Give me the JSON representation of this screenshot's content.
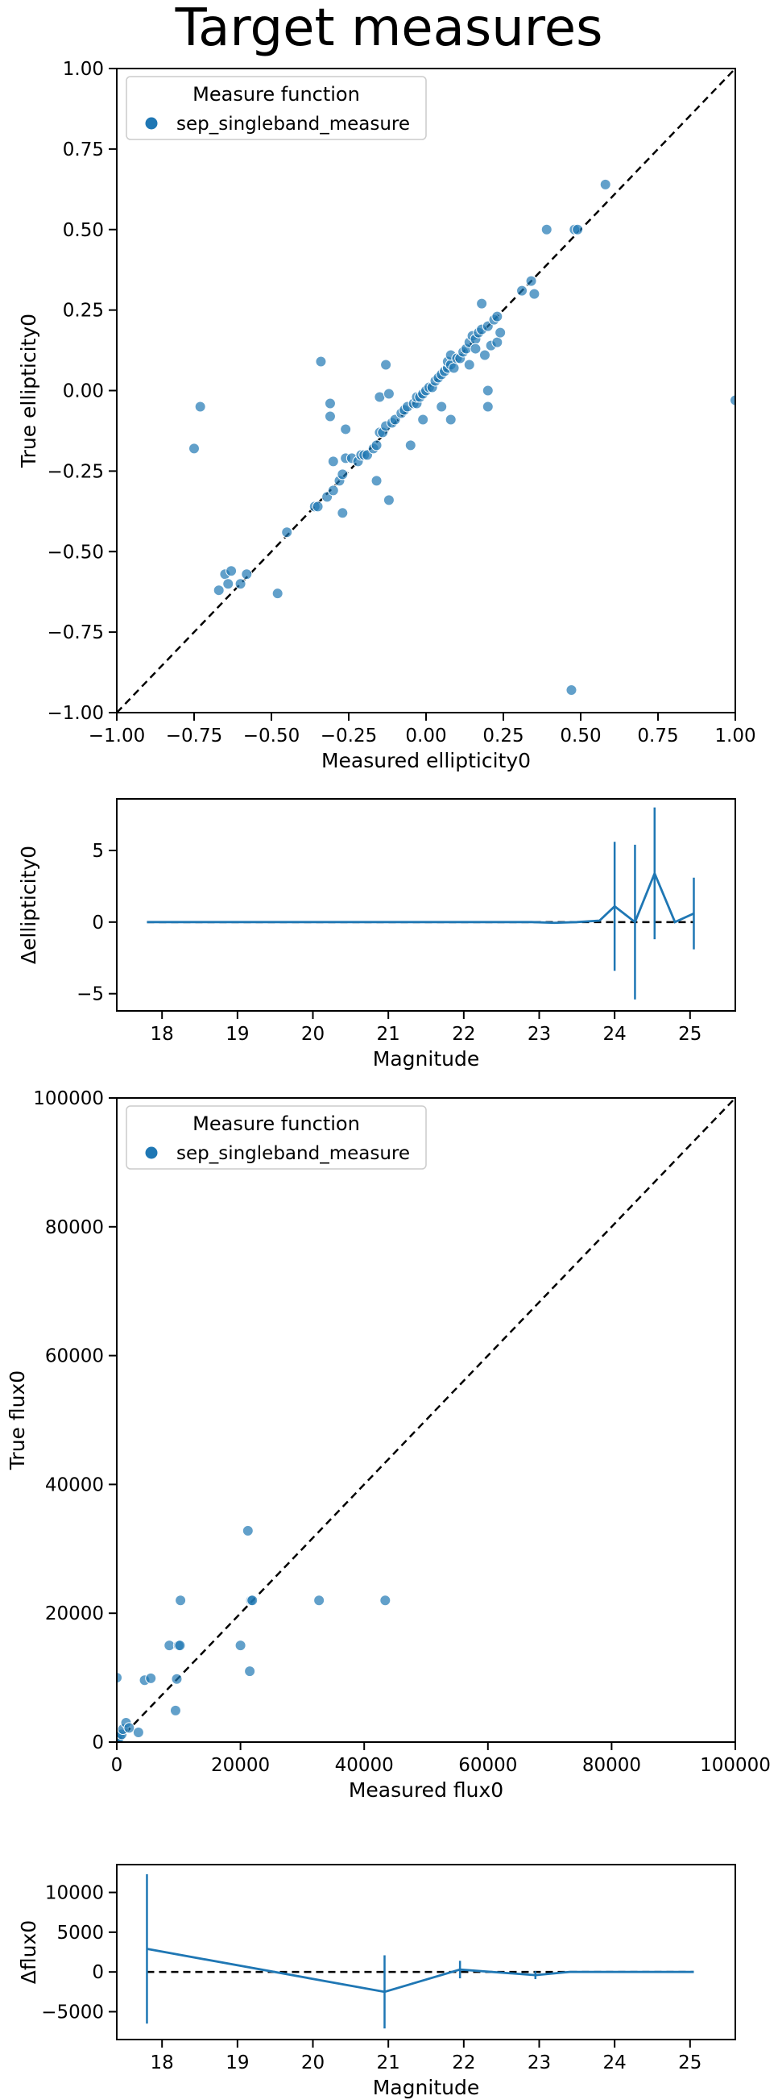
{
  "figure": {
    "title": "Target measures"
  },
  "chart_data": [
    {
      "type": "scatter",
      "xlabel": "Measured ellipticity0",
      "ylabel": "True ellipticity0",
      "xlim": [
        -1.0,
        1.0
      ],
      "ylim": [
        -1.0,
        1.0
      ],
      "xticks": [
        "−1.00",
        "−0.75",
        "−0.50",
        "−0.25",
        "0.00",
        "0.25",
        "0.50",
        "0.75",
        "1.00"
      ],
      "yticks": [
        "−1.00",
        "−0.75",
        "−0.50",
        "−0.25",
        "0.00",
        "0.25",
        "0.50",
        "0.75",
        "1.00"
      ],
      "legend": {
        "title": "Measure function",
        "entries": [
          "sep_singleband_measure"
        ],
        "placement": "top-left"
      },
      "reference_line": "y = x (dashed)",
      "grid": false,
      "series": [
        {
          "name": "sep_singleband_measure",
          "color": "#1f77b4",
          "points": [
            [
              -0.75,
              -0.18
            ],
            [
              -0.73,
              -0.05
            ],
            [
              -0.67,
              -0.62
            ],
            [
              -0.65,
              -0.57
            ],
            [
              -0.63,
              -0.56
            ],
            [
              -0.64,
              -0.6
            ],
            [
              -0.6,
              -0.6
            ],
            [
              -0.58,
              -0.57
            ],
            [
              -0.48,
              -0.63
            ],
            [
              -0.45,
              -0.44
            ],
            [
              -0.36,
              -0.36
            ],
            [
              -0.35,
              -0.36
            ],
            [
              -0.34,
              0.09
            ],
            [
              -0.32,
              -0.33
            ],
            [
              -0.31,
              -0.04
            ],
            [
              -0.31,
              -0.08
            ],
            [
              -0.3,
              -0.22
            ],
            [
              -0.3,
              -0.31
            ],
            [
              -0.28,
              -0.28
            ],
            [
              -0.27,
              -0.26
            ],
            [
              -0.27,
              -0.38
            ],
            [
              -0.26,
              -0.21
            ],
            [
              -0.26,
              -0.12
            ],
            [
              -0.24,
              -0.21
            ],
            [
              -0.22,
              -0.22
            ],
            [
              -0.21,
              -0.2
            ],
            [
              -0.2,
              -0.2
            ],
            [
              -0.19,
              -0.2
            ],
            [
              -0.17,
              -0.18
            ],
            [
              -0.16,
              -0.17
            ],
            [
              -0.16,
              -0.28
            ],
            [
              -0.15,
              -0.13
            ],
            [
              -0.15,
              -0.02
            ],
            [
              -0.14,
              -0.13
            ],
            [
              -0.13,
              0.08
            ],
            [
              -0.13,
              -0.11
            ],
            [
              -0.12,
              -0.01
            ],
            [
              -0.12,
              -0.34
            ],
            [
              -0.11,
              -0.1
            ],
            [
              -0.1,
              -0.09
            ],
            [
              -0.08,
              -0.07
            ],
            [
              -0.07,
              -0.06
            ],
            [
              -0.06,
              -0.05
            ],
            [
              -0.05,
              -0.17
            ],
            [
              -0.04,
              -0.04
            ],
            [
              -0.03,
              -0.04
            ],
            [
              -0.03,
              -0.02
            ],
            [
              -0.02,
              -0.02
            ],
            [
              -0.01,
              -0.01
            ],
            [
              -0.01,
              -0.09
            ],
            [
              0.0,
              0.0
            ],
            [
              0.01,
              0.01
            ],
            [
              0.02,
              0.01
            ],
            [
              0.03,
              0.03
            ],
            [
              0.04,
              0.04
            ],
            [
              0.05,
              0.05
            ],
            [
              0.05,
              -0.05
            ],
            [
              0.06,
              0.06
            ],
            [
              0.07,
              0.07
            ],
            [
              0.07,
              0.09
            ],
            [
              0.08,
              0.08
            ],
            [
              0.08,
              0.11
            ],
            [
              0.08,
              -0.09
            ],
            [
              0.09,
              0.07
            ],
            [
              0.1,
              0.1
            ],
            [
              0.11,
              0.1
            ],
            [
              0.12,
              0.12
            ],
            [
              0.13,
              0.13
            ],
            [
              0.14,
              0.15
            ],
            [
              0.14,
              0.08
            ],
            [
              0.15,
              0.17
            ],
            [
              0.16,
              0.16
            ],
            [
              0.16,
              0.13
            ],
            [
              0.17,
              0.18
            ],
            [
              0.18,
              0.19
            ],
            [
              0.18,
              0.27
            ],
            [
              0.19,
              0.11
            ],
            [
              0.2,
              0.2
            ],
            [
              0.2,
              0.0
            ],
            [
              0.2,
              -0.05
            ],
            [
              0.21,
              0.14
            ],
            [
              0.22,
              0.22
            ],
            [
              0.23,
              0.23
            ],
            [
              0.23,
              0.15
            ],
            [
              0.24,
              0.18
            ],
            [
              0.31,
              0.31
            ],
            [
              0.34,
              0.34
            ],
            [
              0.35,
              0.3
            ],
            [
              0.39,
              0.5
            ],
            [
              0.47,
              -0.93
            ],
            [
              0.48,
              0.5
            ],
            [
              0.49,
              0.5
            ],
            [
              0.58,
              0.64
            ],
            [
              1.0,
              -0.03
            ]
          ]
        }
      ]
    },
    {
      "type": "line",
      "xlabel": "Magnitude",
      "ylabel": "Δellipticity0",
      "xlim": [
        17.4,
        25.6
      ],
      "ylim": [
        -6.2,
        8.6
      ],
      "xticks": [
        "18",
        "19",
        "20",
        "21",
        "22",
        "23",
        "24",
        "25"
      ],
      "yticks": [
        "−5",
        "0",
        "5"
      ],
      "reference_line": "y = 0 (dashed)",
      "grid": false,
      "series": [
        {
          "color": "#1f77b4",
          "points": [
            [
              17.8,
              0.0,
              0.0
            ],
            [
              18.3,
              0.0,
              0.0
            ],
            [
              20.9,
              0.0,
              0.0
            ],
            [
              21.9,
              0.0,
              0.0
            ],
            [
              22.4,
              0.0,
              0.0
            ],
            [
              22.9,
              0.0,
              0.0
            ],
            [
              23.2,
              -0.05,
              0.0
            ],
            [
              23.5,
              0.0,
              0.0
            ],
            [
              23.8,
              0.1,
              0.0
            ],
            [
              24.0,
              1.1,
              4.5
            ],
            [
              24.27,
              0.0,
              5.4
            ],
            [
              24.53,
              3.4,
              4.6
            ],
            [
              24.8,
              0.0,
              0.0
            ],
            [
              25.05,
              0.6,
              2.5
            ]
          ]
        }
      ]
    },
    {
      "type": "scatter",
      "xlabel": "Measured flux0",
      "ylabel": "True flux0",
      "xlim": [
        0,
        100000
      ],
      "ylim": [
        0,
        100000
      ],
      "xticks": [
        "0",
        "20000",
        "40000",
        "60000",
        "80000",
        "100000"
      ],
      "yticks": [
        "0",
        "20000",
        "40000",
        "60000",
        "80000",
        "100000"
      ],
      "legend": {
        "title": "Measure function",
        "entries": [
          "sep_singleband_measure"
        ],
        "placement": "top-left"
      },
      "reference_line": "y = x (dashed)",
      "grid": false,
      "series": [
        {
          "name": "sep_singleband_measure",
          "color": "#1f77b4",
          "points": [
            [
              0,
              10000
            ],
            [
              200,
              300
            ],
            [
              500,
              800
            ],
            [
              800,
              1200
            ],
            [
              1000,
              2000
            ],
            [
              1500,
              3000
            ],
            [
              2000,
              2200
            ],
            [
              3500,
              1500
            ],
            [
              4500,
              9600
            ],
            [
              5500,
              9900
            ],
            [
              8500,
              15000
            ],
            [
              9500,
              4900
            ],
            [
              9700,
              9800
            ],
            [
              10000,
              15000
            ],
            [
              10200,
              15000
            ],
            [
              10300,
              22000
            ],
            [
              20000,
              15000
            ],
            [
              21200,
              32800
            ],
            [
              21500,
              11000
            ],
            [
              21700,
              22000
            ],
            [
              21900,
              22000
            ],
            [
              32700,
              22000
            ],
            [
              43400,
              22000
            ]
          ]
        }
      ]
    },
    {
      "type": "line",
      "xlabel": "Magnitude",
      "ylabel": "Δflux0",
      "xlim": [
        17.4,
        25.6
      ],
      "ylim": [
        -8500,
        13500
      ],
      "xticks": [
        "18",
        "19",
        "20",
        "21",
        "22",
        "23",
        "24",
        "25"
      ],
      "yticks": [
        "−5000",
        "0",
        "5000",
        "10000"
      ],
      "reference_line": "y = 0 (dashed)",
      "grid": false,
      "series": [
        {
          "color": "#1f77b4",
          "points": [
            [
              17.8,
              2900,
              9400
            ],
            [
              20.95,
              -2500,
              4600
            ],
            [
              21.95,
              300,
              1100
            ],
            [
              22.95,
              -400,
              500
            ],
            [
              23.4,
              0,
              0
            ],
            [
              24.0,
              0,
              0
            ],
            [
              25.05,
              0,
              0
            ]
          ]
        }
      ]
    }
  ]
}
